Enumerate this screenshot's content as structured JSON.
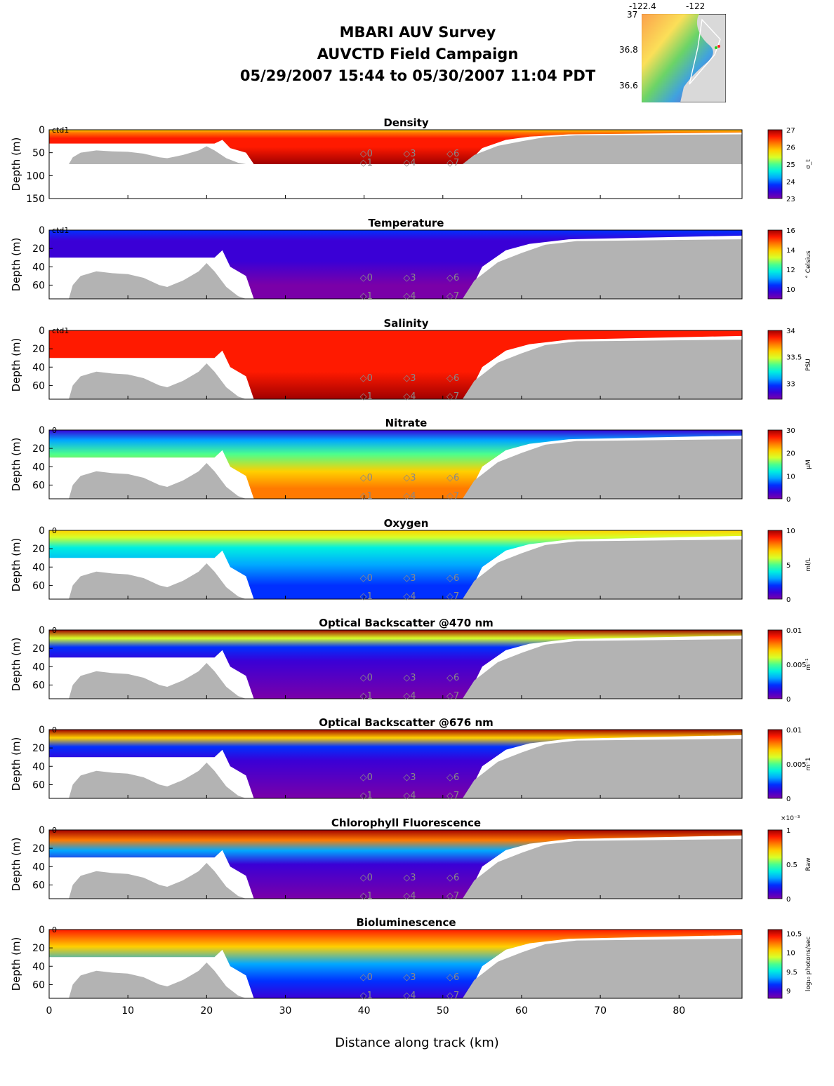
{
  "header": {
    "line1": "MBARI AUV Survey",
    "line2": "AUVCTD Field Campaign",
    "line3": "05/29/2007 15:44  to 05/30/2007 11:04 PDT"
  },
  "inset_map": {
    "lon_ticks": [
      "-122.4",
      "-122"
    ],
    "lat_ticks": [
      "37",
      "36.8",
      "36.6"
    ]
  },
  "x_axis": {
    "label": "Distance along track (km)",
    "ticks": [
      "0",
      "10",
      "20",
      "30",
      "40",
      "50",
      "60",
      "70",
      "80"
    ],
    "range": [
      0,
      88
    ]
  },
  "chart_data": [
    {
      "type": "heatmap",
      "title": "Density",
      "ylabel": "Depth (m)",
      "ylim": [
        150,
        0
      ],
      "yticks": [
        "0",
        "50",
        "100",
        "150"
      ],
      "colorbar_label": "σ_t",
      "colorbar_ticks": [
        "27",
        "26",
        "25",
        "24",
        "23"
      ],
      "clim": [
        23,
        27
      ],
      "palette": "density"
    },
    {
      "type": "heatmap",
      "title": "Temperature",
      "ylabel": "Depth (m)",
      "ylim": [
        75,
        0
      ],
      "yticks": [
        "0",
        "20",
        "40",
        "60"
      ],
      "colorbar_label": "° Celsius",
      "colorbar_ticks": [
        "16",
        "14",
        "12",
        "10"
      ],
      "clim": [
        9,
        16
      ],
      "palette": "temperature"
    },
    {
      "type": "heatmap",
      "title": "Salinity",
      "ylabel": "Depth (m)",
      "ylim": [
        75,
        0
      ],
      "yticks": [
        "0",
        "20",
        "40",
        "60"
      ],
      "colorbar_label": "PSU",
      "colorbar_ticks": [
        "34",
        "33.5",
        "33"
      ],
      "clim": [
        32.7,
        34
      ],
      "palette": "salinity"
    },
    {
      "type": "heatmap",
      "title": "Nitrate",
      "ylabel": "Depth (m)",
      "ylim": [
        75,
        0
      ],
      "yticks": [
        "0",
        "20",
        "40",
        "60"
      ],
      "colorbar_label": "μM",
      "colorbar_ticks": [
        "30",
        "20",
        "10",
        "0"
      ],
      "clim": [
        0,
        30
      ],
      "palette": "nitrate"
    },
    {
      "type": "heatmap",
      "title": "Oxygen",
      "ylabel": "Depth (m)",
      "ylim": [
        75,
        0
      ],
      "yticks": [
        "0",
        "20",
        "40",
        "60"
      ],
      "colorbar_label": "ml/L",
      "colorbar_ticks": [
        "10",
        "5",
        "0"
      ],
      "clim": [
        0,
        10
      ],
      "palette": "oxygen"
    },
    {
      "type": "heatmap",
      "title": "Optical Backscatter @470 nm",
      "ylabel": "Depth (m)",
      "ylim": [
        75,
        0
      ],
      "yticks": [
        "0",
        "20",
        "40",
        "60"
      ],
      "colorbar_label": "m⁻¹",
      "colorbar_ticks": [
        "0.01",
        "0.005",
        "0"
      ],
      "clim": [
        0,
        0.01
      ],
      "palette": "bb470"
    },
    {
      "type": "heatmap",
      "title": "Optical Backscatter @676 nm",
      "ylabel": "Depth (m)",
      "ylim": [
        75,
        0
      ],
      "yticks": [
        "0",
        "20",
        "40",
        "60"
      ],
      "colorbar_label": "m⁻1",
      "colorbar_ticks": [
        "0.01",
        "0.005",
        "0"
      ],
      "clim": [
        0,
        0.01
      ],
      "palette": "bb676"
    },
    {
      "type": "heatmap",
      "title": "Chlorophyll Fluorescence",
      "ylabel": "Depth (m)",
      "ylim": [
        75,
        0
      ],
      "yticks": [
        "0",
        "20",
        "40",
        "60"
      ],
      "colorbar_label": "Raw",
      "colorbar_exponent": "×10⁻³",
      "colorbar_ticks": [
        "1",
        "0.5",
        "0"
      ],
      "clim": [
        0,
        1
      ],
      "palette": "chl"
    },
    {
      "type": "heatmap",
      "title": "Bioluminescence",
      "ylabel": "Depth (m)",
      "ylim": [
        75,
        0
      ],
      "yticks": [
        "0",
        "20",
        "40",
        "60"
      ],
      "colorbar_label": "log₁₀ photons/sec",
      "colorbar_ticks": [
        "10.5",
        "10",
        "9.5",
        "9"
      ],
      "clim": [
        8.8,
        10.6
      ],
      "palette": "biolum"
    }
  ],
  "station_labels": {
    "top_row": [
      "0",
      "3",
      "6"
    ],
    "bottom_row": [
      "1",
      "4",
      "7"
    ],
    "top_row_km": [
      40,
      45.5,
      51
    ],
    "bottom_row_km": [
      40,
      45.5,
      51
    ]
  },
  "corner_marks": [
    "ctd1",
    "0"
  ],
  "colors": {
    "seafloor": "#b3b3b3",
    "blank": "#ffffff",
    "axis": "#000000"
  }
}
